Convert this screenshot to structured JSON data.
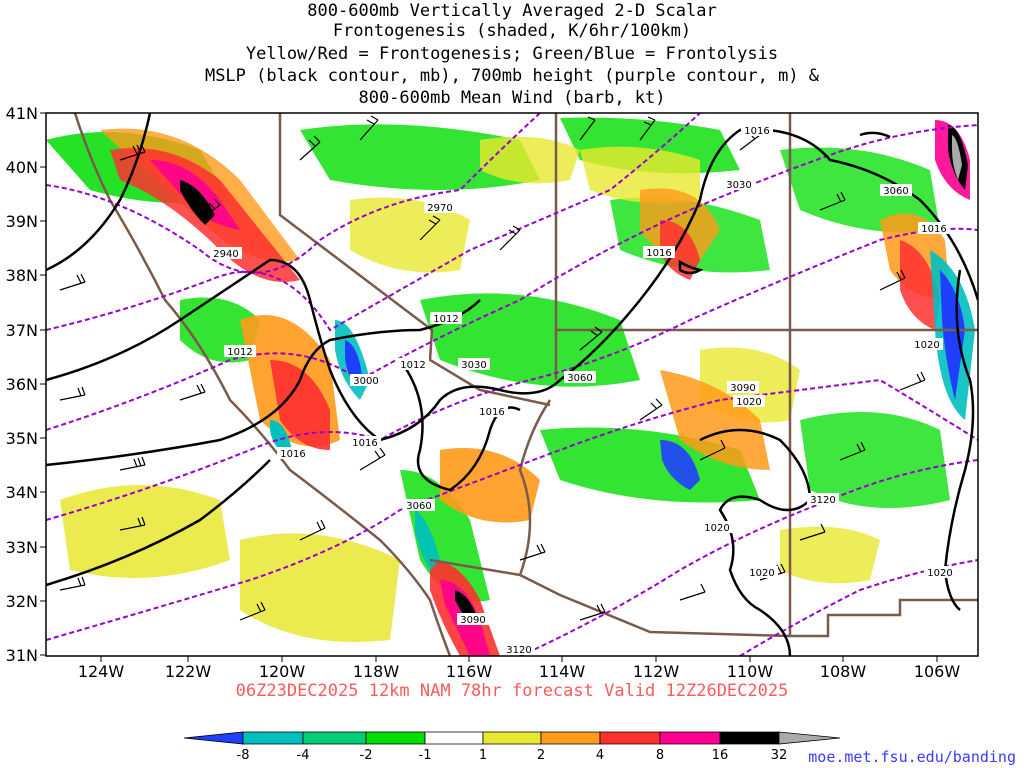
{
  "title_lines": [
    "800-600mb Vertically Averaged 2-D Scalar",
    "Frontogenesis (shaded, K/6hr/100km)",
    "Yellow/Red = Frontogenesis;  Green/Blue = Frontolysis",
    "MSLP (black contour, mb), 700mb height (purple contour, m) &",
    "800-600mb Mean Wind (barb, kt)"
  ],
  "lat_labels": [
    "41N",
    "40N",
    "39N",
    "38N",
    "37N",
    "36N",
    "35N",
    "34N",
    "33N",
    "32N",
    "31N"
  ],
  "lon_labels": [
    "124W",
    "122W",
    "120W",
    "118W",
    "116W",
    "114W",
    "112W",
    "110W",
    "108W",
    "106W"
  ],
  "footer": "06Z23DEC2025 12km NAM 78hr forecast Valid 12Z26DEC2025",
  "credit": "moe.met.fsu.edu/banding",
  "colorbar": {
    "labels": [
      "-8",
      "-4",
      "-2",
      "-1",
      "1",
      "2",
      "4",
      "8",
      "16",
      "32"
    ],
    "colors": [
      "#1f3fff",
      "#00bfbf",
      "#00cc77",
      "#00dd00",
      "#ffffff",
      "#e8e830",
      "#ff9a1a",
      "#ff3030",
      "#ff0090",
      "#000000",
      "#aaaaaa"
    ]
  },
  "pressure_labels": [
    "1016",
    "1016",
    "1016",
    "1016",
    "1016",
    "1016",
    "1012",
    "1012",
    "1012",
    "1020",
    "1020",
    "1020",
    "1020",
    "1020"
  ],
  "height_labels": [
    "2940",
    "2970",
    "3000",
    "3030",
    "3030",
    "3060",
    "3060",
    "3060",
    "3090",
    "3090",
    "3120",
    "3120"
  ],
  "colors": {
    "mslp": "#000000",
    "height": "#9900cc",
    "borders": "#7a5a4a"
  }
}
